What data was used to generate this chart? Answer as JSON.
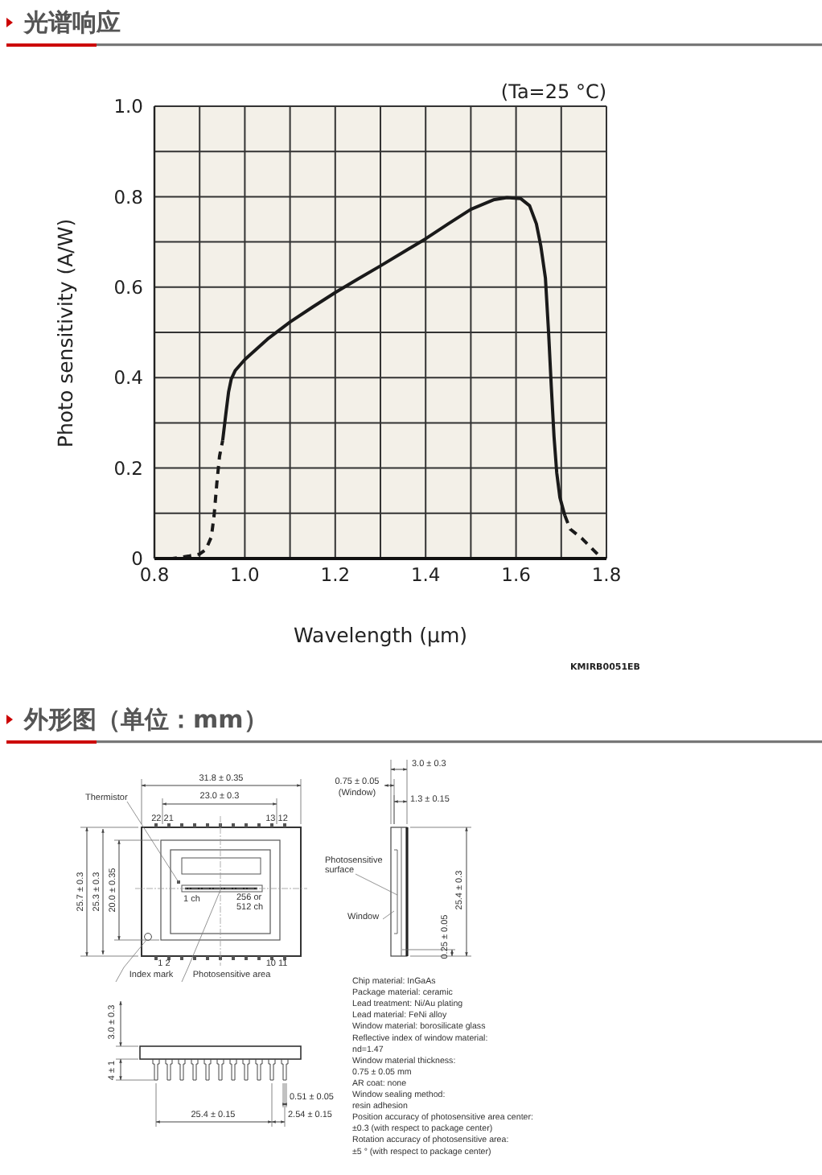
{
  "chart_data": [
    {
      "type": "line",
      "title": "光谱响应",
      "xlabel": "Wavelength (μm)",
      "ylabel": "Photo sensitivity (A/W)",
      "annotations": [
        "(Ta=25 °C)",
        "KMIRB0051EB"
      ],
      "xlim": [
        0.8,
        1.8
      ],
      "ylim": [
        0,
        1
      ],
      "xticks": [
        0.8,
        {
          "value": 0.9,
          "label": null
        },
        {
          "value": 1,
          "label": "1.0"
        },
        {
          "value": 1.1,
          "label": null
        },
        1.2,
        {
          "value": 1.3,
          "label": null
        },
        1.4,
        {
          "value": 1.5,
          "label": null
        },
        1.6,
        {
          "value": 1.7,
          "label": null
        },
        1.8
      ],
      "yticks": [
        0,
        {
          "value": 0.1,
          "label": null
        },
        0.2,
        {
          "value": 0.3,
          "label": null
        },
        0.4,
        {
          "value": 0.5,
          "label": null
        },
        0.6,
        {
          "value": 0.7,
          "label": null
        },
        0.8,
        {
          "value": 0.9,
          "label": null
        },
        {
          "value": 1,
          "label": "1.0"
        }
      ],
      "grid": true,
      "marker": "none",
      "series": [
        {
          "color": "#1a1a1a",
          "line_style": "dashed",
          "x": [
            0.8,
            0.84,
            0.878,
            0.9,
            0.914,
            0.926,
            0.932,
            0.938,
            0.944,
            0.951
          ],
          "values": [
            0,
            0,
            0.006,
            0.01,
            0.02,
            0.048,
            0.095,
            0.166,
            0.226,
            0.261
          ]
        },
        {
          "color": "#1a1a1a",
          "line_style": "solid",
          "x": [
            0.951,
            0.958,
            0.964,
            0.97,
            0.979,
            1.0,
            1.05,
            1.1,
            1.15,
            1.2,
            1.25,
            1.3,
            1.35,
            1.4,
            1.45,
            1.5,
            1.55,
            1.58,
            1.61,
            1.63,
            1.645,
            1.655,
            1.665,
            1.672,
            1.678,
            1.684,
            1.69,
            1.697,
            1.708
          ],
          "values": [
            0.261,
            0.32,
            0.368,
            0.397,
            0.416,
            0.44,
            0.485,
            0.523,
            0.556,
            0.588,
            0.618,
            0.647,
            0.677,
            0.707,
            0.74,
            0.772,
            0.793,
            0.798,
            0.796,
            0.78,
            0.74,
            0.69,
            0.62,
            0.5,
            0.38,
            0.27,
            0.19,
            0.135,
            0.095
          ]
        },
        {
          "color": "#1a1a1a",
          "line_style": "dashed",
          "x": [
            1.708,
            1.72,
            1.745,
            1.765,
            1.785
          ],
          "values": [
            0.095,
            0.065,
            0.045,
            0.025,
            0.005
          ]
        }
      ]
    },
    {
      "type": "other",
      "title": "外形图（单位：mm）",
      "annotations": [
        "31.8 ± 0.35",
        "23.0 ± 0.3",
        "Thermistor",
        "22 21",
        "13 12",
        "1 ch",
        "256 or",
        "512 ch",
        "1 2",
        "10 11",
        "Index mark",
        "Photosensitive area",
        "25.7 ± 0.3",
        "25.3 ± 0.3",
        "20.0 ± 0.35",
        "0.75 ± 0.05",
        "(Window)",
        "3.0 ± 0.3",
        "1.3 ± 0.15",
        "Photosensitive",
        "surface",
        "Window",
        "0.25 ± 0.05",
        "25.4 ± 0.3",
        "3.0 ± 0.3",
        "4 ± 1",
        "0.51 ± 0.05",
        "25.4 ± 0.15",
        "2.54 ± 0.15",
        "Chip material: InGaAs",
        "Package material: ceramic",
        "Lead treatment: Ni/Au plating",
        "Lead material: FeNi alloy",
        "Window material: borosilicate glass",
        "Reflective index of window material:",
        "nd=1.47",
        "Window material thickness:",
        "0.75 ± 0.05 mm",
        "AR coat: none",
        "Window sealing method:",
        "resin adhesion",
        "Position accuracy of photosensitive area center:",
        "±0.3 (with respect to package center)",
        "Rotation accuracy of photosensitive area:",
        "±5 ° (with respect to package center)"
      ]
    }
  ]
}
